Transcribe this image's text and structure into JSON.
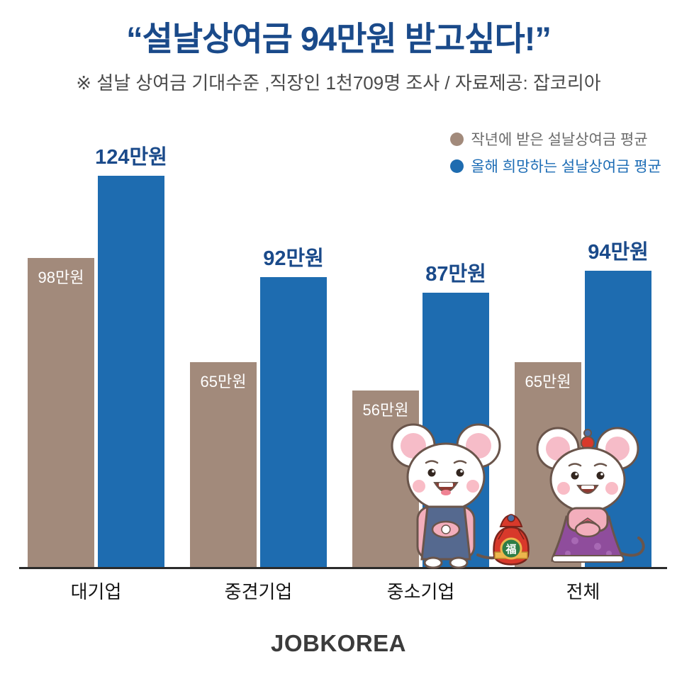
{
  "title": "“설날상여금 94만원 받고싶다!”",
  "subtitle": "※ 설날 상여금 기대수준 ,직장인 1천709명 조사 / 자료제공: 잡코리아",
  "legend": [
    {
      "label": "작년에 받은 설날상여금 평균",
      "color": "#a28a7b"
    },
    {
      "label": "올해 희망하는 설날상여금 평균",
      "color": "#1e6cb0"
    }
  ],
  "chart_data": {
    "type": "bar",
    "title": "설날상여금 94만원 받고싶다!",
    "categories": [
      "대기업",
      "중견기업",
      "중소기업",
      "전체"
    ],
    "series": [
      {
        "name": "작년에 받은 설날상여금 평균",
        "values": [
          98,
          65,
          56,
          65
        ],
        "labels": [
          "98만원",
          "65만원",
          "56만원",
          "65만원"
        ],
        "color": "#a28a7b",
        "label_position": "inside-top"
      },
      {
        "name": "올해 희망하는 설날상여금 평균",
        "values": [
          124,
          92,
          87,
          94
        ],
        "labels": [
          "124만원",
          "92만원",
          "87만원",
          "94만원"
        ],
        "color": "#1e6cb0",
        "label_position": "above"
      }
    ],
    "unit": "만원",
    "ylim": [
      0,
      130
    ],
    "grid": false,
    "legend_position": "top-right"
  },
  "mascots": {
    "pouch_char": "福"
  },
  "footer": {
    "logo": "JOBKOREA"
  },
  "colors": {
    "title": "#1a4a8a",
    "bar_brown": "#a28a7b",
    "bar_blue": "#1e6cb0",
    "subtitle": "#4a4a4a",
    "baseline": "#2b2b2b",
    "logo": "#3b3b3b"
  }
}
